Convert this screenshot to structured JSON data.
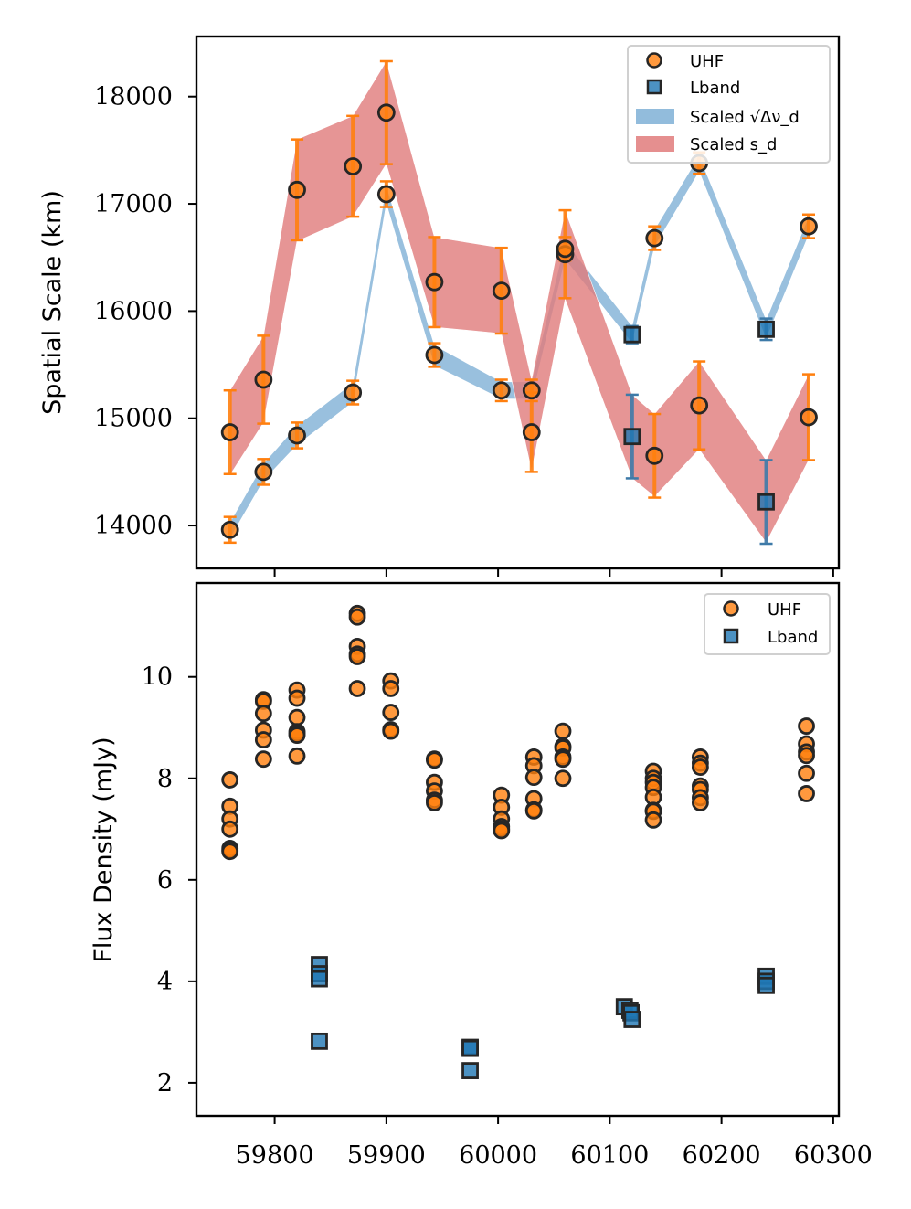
{
  "colors": {
    "uhf": "#ff7f0e",
    "lband": "#1f77b4",
    "blue_band": "#7fb0d6",
    "red_band": "#e07b7b",
    "marker_edge": "#262626"
  },
  "chart_data": [
    {
      "type": "scatter",
      "title": "",
      "xlabel": "",
      "ylabel": "Spatial Scale (km)",
      "xlim": [
        59730,
        60305
      ],
      "ylim": [
        13600,
        18560
      ],
      "xticks": [
        59800,
        59900,
        60000,
        60100,
        60200,
        60300
      ],
      "yticks": [
        14000,
        15000,
        16000,
        17000,
        18000
      ],
      "ytick_labels": [
        "14000",
        "15000",
        "16000",
        "17000",
        "18000"
      ],
      "legend": {
        "position": "top-right",
        "entries": [
          "UHF",
          "Lband",
          "Scaled √Δν_d",
          "Scaled s_d"
        ]
      },
      "series": [
        {
          "name": "Scaled √Δν_d",
          "kind": "band",
          "x": [
            59760,
            59790,
            59820,
            59870,
            59900,
            59943,
            60003,
            60030,
            60060,
            60120,
            60140,
            60180,
            60240,
            60278
          ],
          "lower": [
            13880,
            14420,
            14750,
            15150,
            17000,
            15490,
            15180,
            15180,
            16480,
            15700,
            16600,
            17300,
            15740,
            16710
          ],
          "upper": [
            14030,
            14580,
            14930,
            15330,
            17170,
            15680,
            15340,
            15340,
            16650,
            15860,
            16760,
            17450,
            15920,
            16880
          ]
        },
        {
          "name": "Scaled s_d",
          "kind": "band",
          "x": [
            59760,
            59790,
            59820,
            59870,
            59900,
            59943,
            60003,
            60030,
            60060,
            60120,
            60140,
            60180,
            60240,
            60278
          ],
          "lower": [
            14470,
            14960,
            16650,
            16880,
            17370,
            15850,
            15790,
            14510,
            16110,
            14440,
            14270,
            14710,
            13840,
            14610
          ],
          "upper": [
            15260,
            15770,
            17600,
            17820,
            18330,
            16690,
            16590,
            15360,
            16940,
            15220,
            15040,
            15530,
            14610,
            15410
          ]
        },
        {
          "name": "UHF",
          "kind": "points_errorbar",
          "x": [
            59760,
            59790,
            59820,
            59870,
            59900,
            59943,
            60003,
            60030,
            60060,
            60140,
            60180,
            60278
          ],
          "y": [
            14870,
            15360,
            17130,
            17350,
            17850,
            16270,
            16190,
            14870,
            16530,
            14650,
            15120,
            15010
          ],
          "yerr": [
            390,
            410,
            470,
            470,
            480,
            420,
            400,
            370,
            410,
            390,
            410,
            400
          ]
        },
        {
          "name": "UHF",
          "kind": "points_errorbar",
          "x": [
            59760,
            59790,
            59820,
            59870,
            59900,
            59943,
            60003,
            60030,
            60060,
            60140,
            60180,
            60278
          ],
          "y": [
            13960,
            14500,
            14840,
            15240,
            17090,
            15590,
            15260,
            15260,
            16580,
            16680,
            17380,
            16790
          ],
          "yerr": [
            120,
            120,
            120,
            110,
            120,
            110,
            100,
            100,
            110,
            110,
            100,
            110
          ]
        },
        {
          "name": "Lband",
          "kind": "points_errorbar",
          "x": [
            60120,
            60240
          ],
          "y": [
            15780,
            15830
          ],
          "yerr": [
            80,
            100
          ]
        },
        {
          "name": "Lband",
          "kind": "points_errorbar",
          "x": [
            60120,
            60240
          ],
          "y": [
            14830,
            14220
          ],
          "yerr": [
            390,
            390
          ]
        }
      ]
    },
    {
      "type": "scatter",
      "title": "",
      "xlabel": "",
      "ylabel": "Flux Density (mJy)",
      "xlim": [
        59730,
        60305
      ],
      "ylim": [
        1.35,
        11.85
      ],
      "xticks": [
        59800,
        59900,
        60000,
        60100,
        60200,
        60300
      ],
      "xtick_labels": [
        "59800",
        "59900",
        "60000",
        "60100",
        "60200",
        "60300"
      ],
      "yticks": [
        2,
        4,
        6,
        8,
        10
      ],
      "ytick_labels": [
        "2",
        "4",
        "6",
        "8",
        "10"
      ],
      "legend": {
        "position": "top-right",
        "entries": [
          "UHF",
          "Lband"
        ]
      },
      "series": [
        {
          "name": "UHF",
          "x": [
            59760,
            59760,
            59760,
            59760,
            59760,
            59760,
            59760,
            59790,
            59790,
            59790,
            59790,
            59790,
            59790,
            59820,
            59820,
            59820,
            59820,
            59820,
            59820,
            59820,
            59874,
            59874,
            59874,
            59874,
            59874,
            59874,
            59904,
            59904,
            59904,
            59904,
            59904,
            59943,
            59943,
            59943,
            59943,
            59943,
            59943,
            60003,
            60003,
            60003,
            60003,
            60003,
            60003,
            60032,
            60032,
            60032,
            60032,
            60032,
            60032,
            60058,
            60058,
            60058,
            60058,
            60058,
            60058,
            60139,
            60139,
            60139,
            60139,
            60139,
            60139,
            60139,
            60139,
            60181,
            60181,
            60181,
            60181,
            60181,
            60181,
            60181,
            60276,
            60276,
            60276,
            60276,
            60276,
            60276
          ],
          "y": [
            7.97,
            7.45,
            7.2,
            7.0,
            6.62,
            6.58,
            6.56,
            9.55,
            9.52,
            9.28,
            8.95,
            8.76,
            8.38,
            9.74,
            9.58,
            9.2,
            8.92,
            8.88,
            8.85,
            8.44,
            11.25,
            11.18,
            10.6,
            10.45,
            10.4,
            9.77,
            9.92,
            9.77,
            9.3,
            8.96,
            8.93,
            8.38,
            8.36,
            7.92,
            7.75,
            7.57,
            7.52,
            7.67,
            7.43,
            7.2,
            7.05,
            7.0,
            6.97,
            8.42,
            8.25,
            8.02,
            7.6,
            7.38,
            7.36,
            8.93,
            8.63,
            8.6,
            8.42,
            8.38,
            8.0,
            8.14,
            8.0,
            7.92,
            7.82,
            7.63,
            7.37,
            7.35,
            7.18,
            8.42,
            8.3,
            8.22,
            7.85,
            7.78,
            7.62,
            7.52,
            9.03,
            8.68,
            8.52,
            8.45,
            8.1,
            7.7
          ]
        },
        {
          "name": "Lband",
          "x": [
            59840,
            59840,
            59840,
            59840,
            59975,
            59975,
            59975,
            60113,
            60118,
            60119,
            60120,
            60240,
            60240,
            60240
          ],
          "y": [
            4.33,
            4.15,
            4.05,
            2.82,
            2.7,
            2.68,
            2.24,
            3.5,
            3.43,
            3.38,
            3.25,
            4.1,
            4.0,
            3.92
          ]
        }
      ]
    }
  ]
}
